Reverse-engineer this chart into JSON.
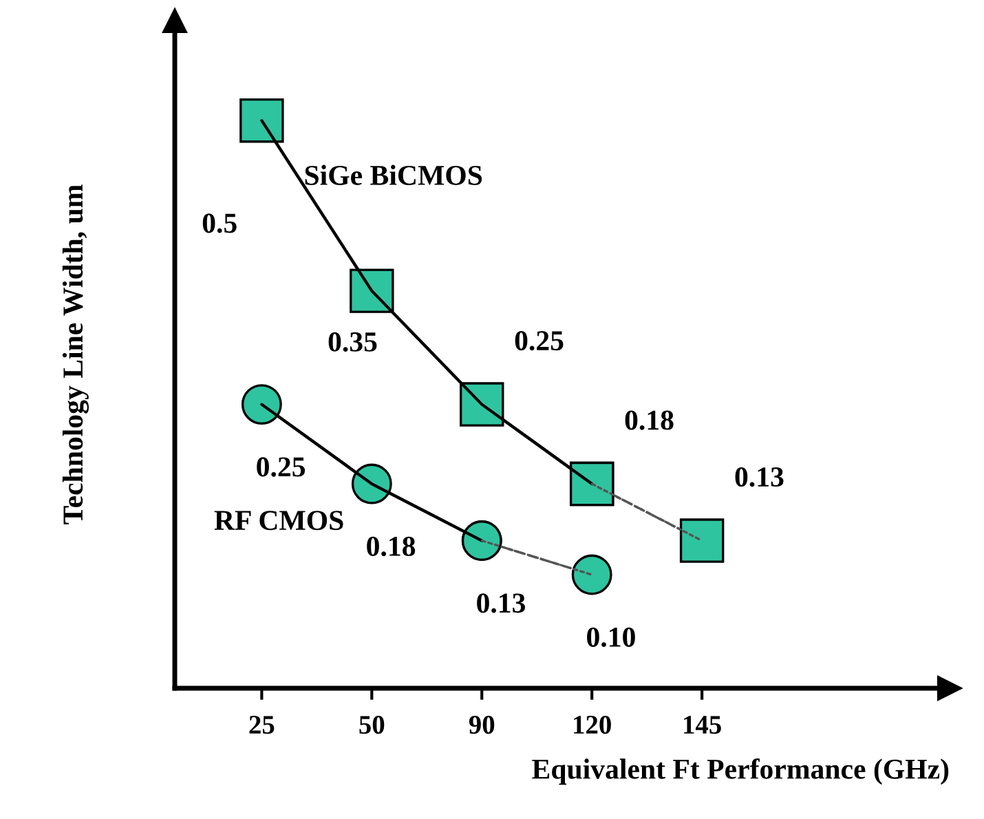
{
  "chart_data": {
    "type": "line",
    "xlabel": "Equivalent Ft Performance (GHz)",
    "ylabel": "Technology Line Width, um",
    "categories": [
      "25",
      "50",
      "90",
      "120",
      "145"
    ],
    "series": [
      {
        "name": "SiGe BiCMOS",
        "color": "#2ec4a0",
        "marker": "square",
        "line_style": "solid",
        "values": [
          0.5,
          0.35,
          0.25,
          0.18,
          null
        ],
        "value_labels": [
          "0.5",
          "0.35",
          "0.25",
          "0.18",
          null
        ]
      },
      {
        "color": "#2ec4a0",
        "marker": "square",
        "line_style": "dashed",
        "values": [
          null,
          null,
          null,
          0.18,
          0.13
        ],
        "value_labels": [
          null,
          null,
          null,
          null,
          "0.13"
        ]
      },
      {
        "name": "RF CMOS",
        "color": "#2ec4a0",
        "marker": "circle",
        "line_style": "solid",
        "values": [
          0.25,
          0.18,
          0.13,
          null,
          null
        ],
        "value_labels": [
          "0.25",
          "0.18",
          "0.13",
          null,
          null
        ]
      },
      {
        "color": "#2ec4a0",
        "marker": "circle",
        "line_style": "dashed",
        "values": [
          null,
          null,
          0.13,
          0.1,
          null
        ],
        "value_labels": [
          null,
          null,
          null,
          "0.10",
          null
        ]
      }
    ],
    "grid": false,
    "legend": false
  }
}
